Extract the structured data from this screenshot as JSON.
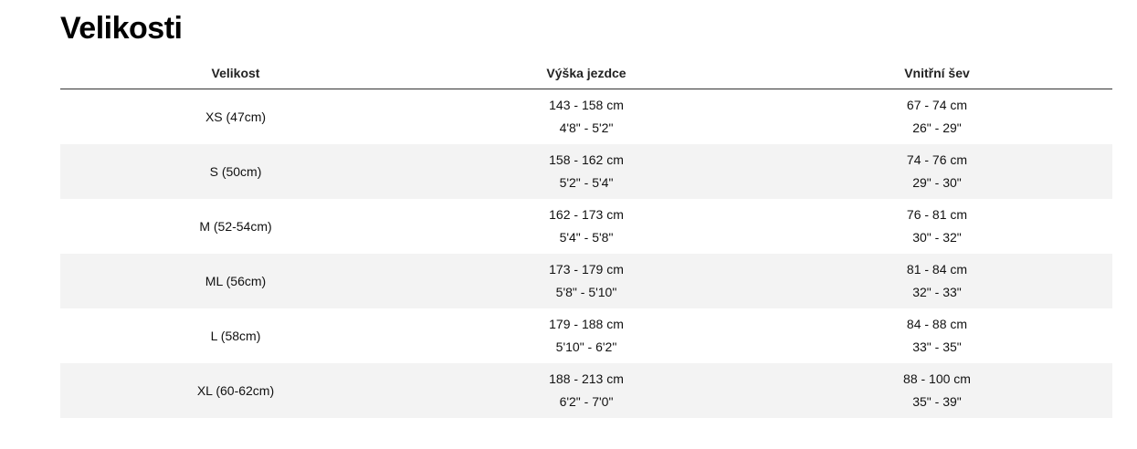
{
  "title": "Velikosti",
  "table": {
    "headers": [
      "Velikost",
      "Výška jezdce",
      "Vnitřní šev"
    ],
    "rows": [
      {
        "size": "XS (47cm)",
        "height_cm": "143 - 158 cm",
        "height_ft": "4'8\" - 5'2\"",
        "inseam_cm": "67 - 74 cm",
        "inseam_in": "26\" - 29\""
      },
      {
        "size": "S (50cm)",
        "height_cm": "158 - 162 cm",
        "height_ft": "5'2\" - 5'4\"",
        "inseam_cm": "74 - 76 cm",
        "inseam_in": "29\" - 30\""
      },
      {
        "size": "M (52-54cm)",
        "height_cm": "162 - 173 cm",
        "height_ft": "5'4\" - 5'8\"",
        "inseam_cm": "76 - 81 cm",
        "inseam_in": "30\" - 32\""
      },
      {
        "size": "ML (56cm)",
        "height_cm": "173 - 179 cm",
        "height_ft": "5'8\" - 5'10\"",
        "inseam_cm": "81 - 84 cm",
        "inseam_in": "32\" - 33\""
      },
      {
        "size": "L (58cm)",
        "height_cm": "179 - 188 cm",
        "height_ft": "5'10\" - 6'2\"",
        "inseam_cm": "84 - 88 cm",
        "inseam_in": "33\" - 35\""
      },
      {
        "size": "XL (60-62cm)",
        "height_cm": "188 - 213 cm",
        "height_ft": "6'2\" - 7'0\"",
        "inseam_cm": "88 - 100 cm",
        "inseam_in": "35\" - 39\""
      }
    ]
  }
}
